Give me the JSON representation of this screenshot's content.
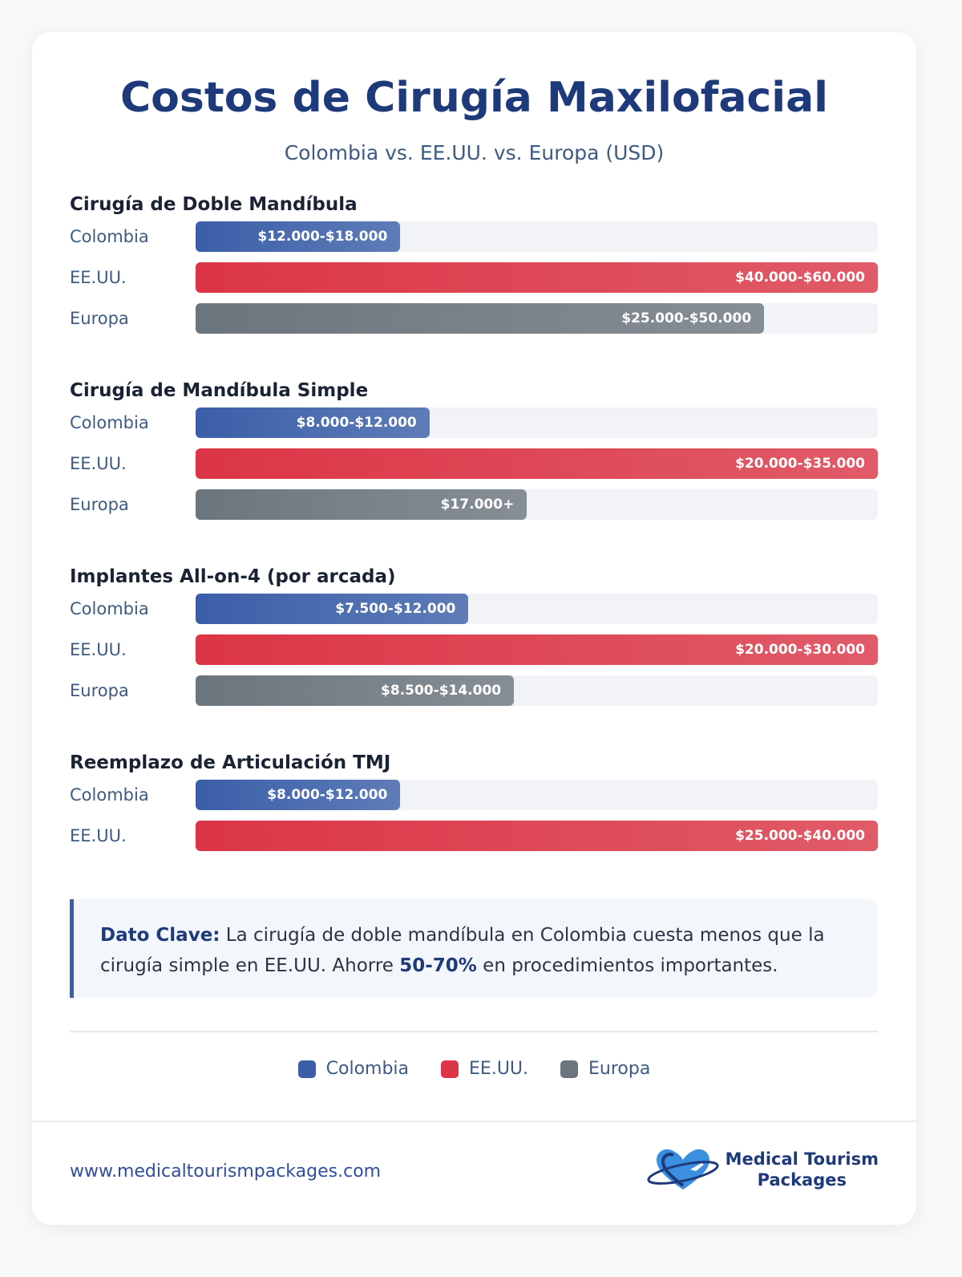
{
  "header": {
    "title": "Costos de Cirugía Maxilofacial",
    "subtitle": "Colombia vs. EE.UU. vs. Europa (USD)"
  },
  "chart_data": [
    {
      "type": "bar",
      "orientation": "horizontal",
      "title": "Cirugía de Doble Mandíbula",
      "categories": [
        "Colombia",
        "EE.UU.",
        "Europa"
      ],
      "values": [
        18000,
        60000,
        50000
      ],
      "value_labels": [
        "$12.000-$18.000",
        "$40.000-$60.000",
        "$25.000-$50.000"
      ],
      "colors": [
        "#3a5ea8",
        "#dc3545",
        "#6c757d"
      ],
      "xlim": [
        0,
        60000
      ]
    },
    {
      "type": "bar",
      "orientation": "horizontal",
      "title": "Cirugía de Mandíbula Simple",
      "categories": [
        "Colombia",
        "EE.UU.",
        "Europa"
      ],
      "values": [
        12000,
        35000,
        17000
      ],
      "value_labels": [
        "$8.000-$12.000",
        "$20.000-$35.000",
        "$17.000+"
      ],
      "colors": [
        "#3a5ea8",
        "#dc3545",
        "#6c757d"
      ],
      "xlim": [
        0,
        35000
      ]
    },
    {
      "type": "bar",
      "orientation": "horizontal",
      "title": "Implantes All-on-4 (por arcada)",
      "categories": [
        "Colombia",
        "EE.UU.",
        "Europa"
      ],
      "values": [
        12000,
        30000,
        14000
      ],
      "value_labels": [
        "$7.500-$12.000",
        "$20.000-$30.000",
        "$8.500-$14.000"
      ],
      "colors": [
        "#3a5ea8",
        "#dc3545",
        "#6c757d"
      ],
      "xlim": [
        0,
        30000
      ]
    },
    {
      "type": "bar",
      "orientation": "horizontal",
      "title": "Reemplazo de Articulación TMJ",
      "categories": [
        "Colombia",
        "EE.UU."
      ],
      "values": [
        12000,
        40000
      ],
      "value_labels": [
        "$8.000-$12.000",
        "$25.000-$40.000"
      ],
      "colors": [
        "#3a5ea8",
        "#dc3545"
      ],
      "xlim": [
        0,
        40000
      ]
    }
  ],
  "callout": {
    "segments": [
      {
        "text": "Dato Clave:",
        "strong": true
      },
      {
        "text": " La cirugía de doble mandíbula en Colombia cuesta menos que la cirugía simple en EE.UU. Ahorre ",
        "strong": false
      },
      {
        "text": "50-70%",
        "strong": true
      },
      {
        "text": " en procedimientos importantes.",
        "strong": false
      }
    ]
  },
  "legend": [
    {
      "name": "Colombia",
      "color": "#3a5ea8"
    },
    {
      "name": "EE.UU.",
      "color": "#dc3545"
    },
    {
      "name": "Europa",
      "color": "#6c757d"
    }
  ],
  "footer": {
    "url": "www.medicaltourismpackages.com",
    "logo_lines": [
      "Medical Tourism",
      "Packages"
    ]
  }
}
